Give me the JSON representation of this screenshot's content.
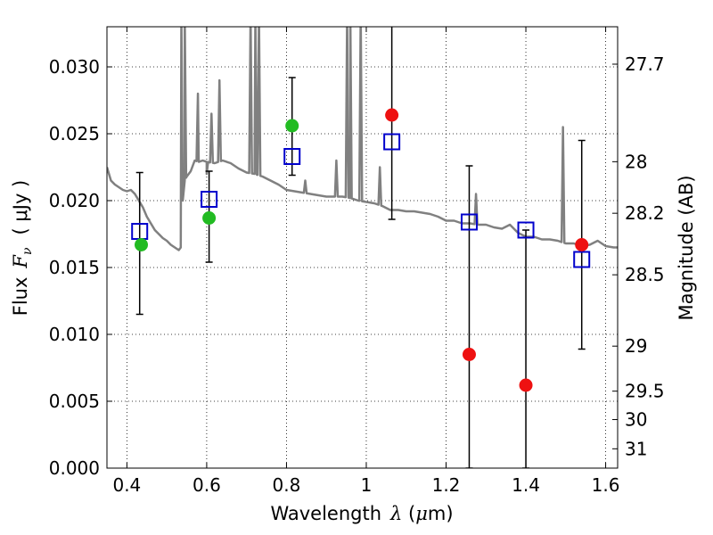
{
  "chart_data": {
    "type": "scatter",
    "xlabel": {
      "prefix": "Wavelength",
      "symbol": "λ",
      "unit_open": " (",
      "unit_mu": "μ",
      "unit_rest": "m)"
    },
    "ylabel": {
      "prefix": "Flux",
      "symbol": "F",
      "sub": "ν",
      "unit": "( μJy )"
    },
    "y2label": "Magnitude (AB)",
    "xlim": [
      0.35,
      1.63
    ],
    "ylim": [
      0.0,
      0.033
    ],
    "grid": true,
    "x_ticks": [
      {
        "v": 0.4,
        "label": "0.4"
      },
      {
        "v": 0.6,
        "label": "0.6"
      },
      {
        "v": 0.8,
        "label": "0.8"
      },
      {
        "v": 1.0,
        "label": "1"
      },
      {
        "v": 1.2,
        "label": "1.2"
      },
      {
        "v": 1.4,
        "label": "1.4"
      },
      {
        "v": 1.6,
        "label": "1.6"
      }
    ],
    "y_ticks": [
      {
        "v": 0.0,
        "label": "0.000"
      },
      {
        "v": 0.005,
        "label": "0.005"
      },
      {
        "v": 0.01,
        "label": "0.010"
      },
      {
        "v": 0.015,
        "label": "0.015"
      },
      {
        "v": 0.02,
        "label": "0.020"
      },
      {
        "v": 0.025,
        "label": "0.025"
      },
      {
        "v": 0.03,
        "label": "0.030"
      }
    ],
    "y2_ticks": [
      {
        "mag": 27.7,
        "label": "27.7"
      },
      {
        "mag": 28.0,
        "label": "28"
      },
      {
        "mag": 28.2,
        "label": "28.2"
      },
      {
        "mag": 28.5,
        "label": "28.5"
      },
      {
        "mag": 29.0,
        "label": "29"
      },
      {
        "mag": 29.5,
        "label": "29.5"
      },
      {
        "mag": 30.0,
        "label": "30"
      },
      {
        "mag": 31.0,
        "label": "31"
      }
    ],
    "colors": {
      "template": "#808080",
      "model": "#0000cc",
      "detection": "#22bb22",
      "upper_limit": "#ee1111",
      "errorbar": "#000000"
    },
    "template_spectrum": {
      "x": [
        0.35,
        0.36,
        0.37,
        0.38,
        0.39,
        0.4,
        0.41,
        0.42,
        0.43,
        0.44,
        0.45,
        0.46,
        0.47,
        0.48,
        0.49,
        0.5,
        0.51,
        0.52,
        0.53,
        0.535,
        0.54,
        0.545,
        0.55,
        0.56,
        0.57,
        0.58,
        0.59,
        0.6,
        0.62,
        0.64,
        0.66,
        0.68,
        0.7,
        0.72,
        0.74,
        0.76,
        0.78,
        0.8,
        0.82,
        0.84,
        0.86,
        0.88,
        0.9,
        0.92,
        0.94,
        0.96,
        0.98,
        1.0,
        1.02,
        1.04,
        1.06,
        1.08,
        1.1,
        1.12,
        1.14,
        1.16,
        1.18,
        1.2,
        1.22,
        1.24,
        1.26,
        1.28,
        1.3,
        1.32,
        1.34,
        1.36,
        1.38,
        1.4,
        1.42,
        1.44,
        1.46,
        1.48,
        1.5,
        1.52,
        1.54,
        1.56,
        1.58,
        1.6,
        1.62,
        1.63
      ],
      "y": [
        0.0225,
        0.0215,
        0.0212,
        0.021,
        0.0208,
        0.0207,
        0.0208,
        0.0205,
        0.02,
        0.0195,
        0.0188,
        0.0183,
        0.0178,
        0.0175,
        0.0172,
        0.017,
        0.0167,
        0.0165,
        0.0163,
        0.0165,
        0.02,
        0.0215,
        0.0218,
        0.0222,
        0.023,
        0.0229,
        0.023,
        0.0229,
        0.0228,
        0.023,
        0.0228,
        0.0224,
        0.0221,
        0.022,
        0.0218,
        0.0215,
        0.0212,
        0.0208,
        0.0207,
        0.0206,
        0.0205,
        0.0204,
        0.0203,
        0.0203,
        0.0203,
        0.0202,
        0.02,
        0.0199,
        0.0198,
        0.0196,
        0.0193,
        0.0193,
        0.0192,
        0.0192,
        0.0191,
        0.019,
        0.0188,
        0.0185,
        0.0185,
        0.0183,
        0.0183,
        0.0182,
        0.0182,
        0.018,
        0.0179,
        0.0182,
        0.0176,
        0.0173,
        0.0173,
        0.0171,
        0.0171,
        0.017,
        0.0168,
        0.0168,
        0.0166,
        0.0167,
        0.017,
        0.0166,
        0.0165,
        0.0165
      ]
    },
    "emission_lines": [
      {
        "x": 0.5365,
        "peak": 0.034
      },
      {
        "x": 0.545,
        "peak": 0.034
      },
      {
        "x": 0.578,
        "peak": 0.028
      },
      {
        "x": 0.6,
        "peak": 0.022
      },
      {
        "x": 0.612,
        "peak": 0.0265
      },
      {
        "x": 0.632,
        "peak": 0.029
      },
      {
        "x": 0.71,
        "peak": 0.034
      },
      {
        "x": 0.722,
        "peak": 0.034
      },
      {
        "x": 0.731,
        "peak": 0.034
      },
      {
        "x": 0.847,
        "peak": 0.0215
      },
      {
        "x": 0.925,
        "peak": 0.023
      },
      {
        "x": 0.952,
        "peak": 0.034
      },
      {
        "x": 0.96,
        "peak": 0.034
      },
      {
        "x": 0.986,
        "peak": 0.034
      },
      {
        "x": 1.034,
        "peak": 0.0225
      },
      {
        "x": 1.275,
        "peak": 0.0205
      },
      {
        "x": 1.493,
        "peak": 0.0255
      }
    ],
    "errorbars": [
      {
        "x": 0.432,
        "low": 0.0115,
        "high": 0.0221
      },
      {
        "x": 0.606,
        "low": 0.0154,
        "high": 0.0222
      },
      {
        "x": 0.814,
        "low": 0.0219,
        "high": 0.0292
      },
      {
        "x": 1.064,
        "low": 0.0186,
        "high": 0.034
      },
      {
        "x": 1.258,
        "low": 0.0,
        "high": 0.0226
      },
      {
        "x": 1.4,
        "low": 0.0,
        "high": 0.0178
      },
      {
        "x": 1.54,
        "low": 0.0089,
        "high": 0.0245
      }
    ],
    "model_points": [
      {
        "x": 0.432,
        "y": 0.0177
      },
      {
        "x": 0.606,
        "y": 0.0201
      },
      {
        "x": 0.814,
        "y": 0.0233
      },
      {
        "x": 1.064,
        "y": 0.0244
      },
      {
        "x": 1.258,
        "y": 0.0184
      },
      {
        "x": 1.4,
        "y": 0.0178
      },
      {
        "x": 1.54,
        "y": 0.0156
      }
    ],
    "detections": [
      {
        "x": 0.436,
        "y": 0.0167
      },
      {
        "x": 0.606,
        "y": 0.0187
      },
      {
        "x": 0.814,
        "y": 0.0256
      }
    ],
    "upper_limits": [
      {
        "x": 1.064,
        "y": 0.0264
      },
      {
        "x": 1.258,
        "y": 0.0085
      },
      {
        "x": 1.4,
        "y": 0.0062
      },
      {
        "x": 1.54,
        "y": 0.0167
      }
    ]
  }
}
